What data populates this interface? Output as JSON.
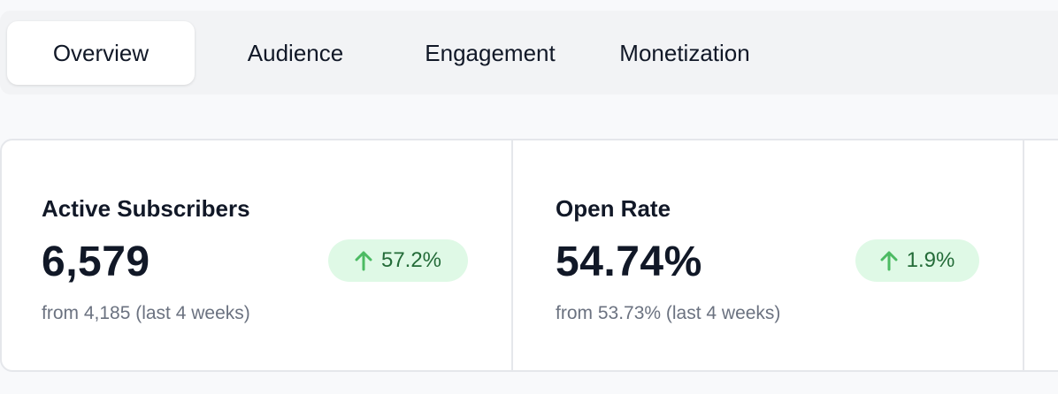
{
  "tabs": [
    {
      "label": "Overview",
      "active": true
    },
    {
      "label": "Audience",
      "active": false
    },
    {
      "label": "Engagement",
      "active": false
    },
    {
      "label": "Monetization",
      "active": false
    }
  ],
  "stats": [
    {
      "title": "Active Subscribers",
      "value": "6,579",
      "change": "57.2%",
      "change_direction": "up",
      "change_icon": "arrow-up-icon",
      "subtext": "from 4,185 (last 4 weeks)"
    },
    {
      "title": "Open Rate",
      "value": "54.74%",
      "change": "1.9%",
      "change_direction": "up",
      "change_icon": "arrow-up-icon",
      "subtext": "from 53.73% (last 4 weeks)"
    }
  ],
  "colors": {
    "positive_badge_bg": "#dff9e6",
    "positive_text": "#236b38",
    "positive_icon": "#4cbb63"
  }
}
